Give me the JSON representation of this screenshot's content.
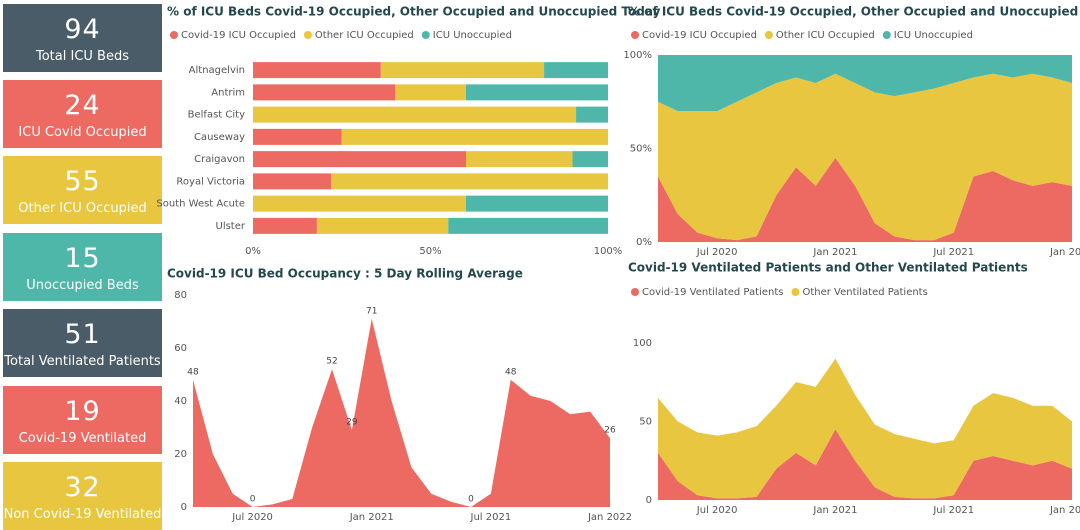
{
  "cards": [
    {
      "value": "94",
      "label": "Total ICU Beds",
      "color": "#4a5c68"
    },
    {
      "value": "24",
      "label": "ICU Covid Occupied",
      "color": "#ec6a62"
    },
    {
      "value": "55",
      "label": "Other ICU Occupied",
      "color": "#e8c640"
    },
    {
      "value": "15",
      "label": "Unoccupied Beds",
      "color": "#4fb7a9"
    },
    {
      "value": "51",
      "label": "Total Ventilated Patients",
      "color": "#4a5c68"
    },
    {
      "value": "19",
      "label": "Covid-19 Ventilated",
      "color": "#ec6a62"
    },
    {
      "value": "32",
      "label": "Non Covid-19 Ventilated",
      "color": "#e8c640"
    }
  ],
  "chart_data": [
    {
      "type": "bar",
      "orientation": "horizontal",
      "stacked": true,
      "title": "% of ICU Beds Covid-19 Occupied, Other Occupied and Unoccupied Today",
      "categories": [
        "Altnagelvin",
        "Antrim",
        "Belfast City",
        "Causeway",
        "Craigavon",
        "Royal Victoria",
        "South West Acute",
        "Ulster"
      ],
      "series": [
        {
          "name": "Covid-19 ICU Occupied",
          "color": "#ec6a62",
          "values": [
            36,
            40,
            0,
            25,
            60,
            22,
            0,
            18
          ]
        },
        {
          "name": "Other ICU Occupied",
          "color": "#e8c640",
          "values": [
            46,
            20,
            91,
            75,
            30,
            78,
            60,
            37
          ]
        },
        {
          "name": "ICU Unoccupied",
          "color": "#4fb7a9",
          "values": [
            18,
            40,
            9,
            0,
            10,
            0,
            40,
            45
          ]
        }
      ],
      "xlim": [
        0,
        100
      ],
      "xticks": [
        {
          "value": 0,
          "label": "0%"
        },
        {
          "value": 50,
          "label": "50%"
        },
        {
          "value": 100,
          "label": "100%"
        }
      ]
    },
    {
      "type": "area",
      "stacked": true,
      "title": "% of ICU Beds Covid-19 Occupied, Other Occupied and Unoccupied",
      "x": [
        "2020-04",
        "2020-05",
        "2020-06",
        "2020-07",
        "2020-08",
        "2020-09",
        "2020-10",
        "2020-11",
        "2020-12",
        "2021-01",
        "2021-02",
        "2021-03",
        "2021-04",
        "2021-05",
        "2021-06",
        "2021-07",
        "2021-08",
        "2021-09",
        "2021-10",
        "2021-11",
        "2021-12",
        "2022-01"
      ],
      "series": [
        {
          "name": "Covid-19 ICU Occupied",
          "color": "#ec6a62",
          "values": [
            35,
            15,
            5,
            2,
            1,
            3,
            25,
            40,
            30,
            45,
            30,
            10,
            3,
            1,
            1,
            5,
            35,
            38,
            33,
            30,
            32,
            30
          ]
        },
        {
          "name": "Other ICU Occupied",
          "color": "#e8c640",
          "values": [
            40,
            55,
            65,
            68,
            74,
            77,
            60,
            48,
            55,
            45,
            55,
            70,
            75,
            79,
            81,
            80,
            53,
            52,
            55,
            60,
            56,
            55
          ]
        },
        {
          "name": "ICU Unoccupied",
          "color": "#4fb7a9",
          "values": [
            25,
            30,
            30,
            30,
            25,
            20,
            15,
            12,
            15,
            10,
            15,
            20,
            22,
            20,
            18,
            15,
            12,
            10,
            12,
            10,
            12,
            15
          ]
        }
      ],
      "xlim": [
        "2020-04",
        "2022-01"
      ],
      "xticks": [
        {
          "value": "2020-07",
          "label": "Jul 2020"
        },
        {
          "value": "2021-01",
          "label": "Jan 2021"
        },
        {
          "value": "2021-07",
          "label": "Jul 2021"
        },
        {
          "value": "2022-01",
          "label": "Jan 2022"
        }
      ],
      "ylim": [
        0,
        100
      ],
      "yticks": [
        {
          "value": 0,
          "label": "0%"
        },
        {
          "value": 50,
          "label": "50%"
        },
        {
          "value": 100,
          "label": "100%"
        }
      ]
    },
    {
      "type": "area",
      "stacked": false,
      "title": "Covid-19 ICU Bed Occupancy : 5 Day Rolling Average",
      "color": "#ec6a62",
      "x": [
        "2020-04",
        "2020-05",
        "2020-06",
        "2020-07",
        "2020-08",
        "2020-09",
        "2020-10",
        "2020-11",
        "2020-12",
        "2021-01",
        "2021-02",
        "2021-03",
        "2021-04",
        "2021-05",
        "2021-06",
        "2021-07",
        "2021-08",
        "2021-09",
        "2021-10",
        "2021-11",
        "2021-12",
        "2022-01"
      ],
      "values": [
        48,
        20,
        5,
        0,
        1,
        3,
        30,
        52,
        29,
        71,
        40,
        15,
        5,
        2,
        0,
        5,
        48,
        42,
        40,
        35,
        36,
        26
      ],
      "value_labels": [
        "48",
        null,
        null,
        "0",
        null,
        null,
        null,
        "52",
        "29",
        "71",
        null,
        null,
        null,
        null,
        "0",
        null,
        "48",
        null,
        null,
        null,
        null,
        "26"
      ],
      "xlim": [
        "2020-04",
        "2022-01"
      ],
      "xticks": [
        {
          "value": "2020-07",
          "label": "Jul 2020"
        },
        {
          "value": "2021-01",
          "label": "Jan 2021"
        },
        {
          "value": "2021-07",
          "label": "Jul 2021"
        },
        {
          "value": "2022-01",
          "label": "Jan 2022"
        }
      ],
      "ylim": [
        0,
        80
      ],
      "yticks": [
        0,
        20,
        40,
        60,
        80
      ]
    },
    {
      "type": "area",
      "stacked": true,
      "title": "Covid-19 Ventilated Patients and Other Ventilated Patients",
      "x": [
        "2020-04",
        "2020-05",
        "2020-06",
        "2020-07",
        "2020-08",
        "2020-09",
        "2020-10",
        "2020-11",
        "2020-12",
        "2021-01",
        "2021-02",
        "2021-03",
        "2021-04",
        "2021-05",
        "2021-06",
        "2021-07",
        "2021-08",
        "2021-09",
        "2021-10",
        "2021-11",
        "2021-12",
        "2022-01"
      ],
      "series": [
        {
          "name": "Covid-19 Ventilated Patients",
          "color": "#ec6a62",
          "values": [
            30,
            12,
            3,
            1,
            1,
            2,
            20,
            30,
            22,
            45,
            25,
            8,
            2,
            1,
            1,
            3,
            25,
            28,
            25,
            22,
            25,
            20
          ]
        },
        {
          "name": "Other Ventilated Patients",
          "color": "#e8c640",
          "values": [
            35,
            38,
            40,
            40,
            42,
            45,
            40,
            45,
            50,
            45,
            42,
            40,
            40,
            38,
            35,
            35,
            35,
            40,
            40,
            38,
            35,
            30
          ]
        }
      ],
      "xlim": [
        "2020-04",
        "2022-01"
      ],
      "xticks": [
        {
          "value": "2020-07",
          "label": "Jul 2020"
        },
        {
          "value": "2021-01",
          "label": "Jan 2021"
        },
        {
          "value": "2021-07",
          "label": "Jul 2021"
        },
        {
          "value": "2022-01",
          "label": "Jan 2022"
        }
      ],
      "ylim": [
        0,
        105
      ],
      "yticks": [
        0,
        50,
        100
      ]
    }
  ]
}
